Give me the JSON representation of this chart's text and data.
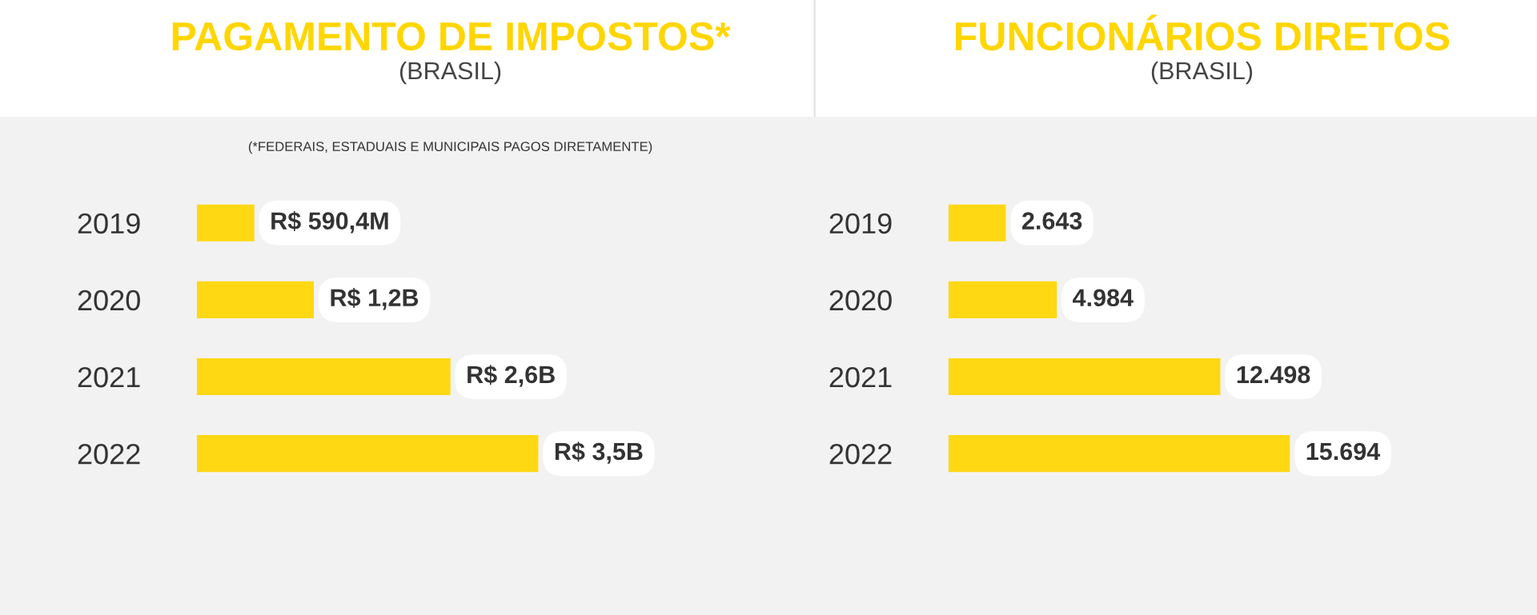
{
  "chart_data": [
    {
      "type": "bar",
      "orientation": "horizontal",
      "title": "PAGAMENTO DE IMPOSTOS*",
      "subtitle": "(BRASIL)",
      "annotations": [
        "(*FEDERAIS, ESTADUAIS E MUNICIPAIS PAGOS DIRETAMENTE)"
      ],
      "categories": [
        "2019",
        "2020",
        "2021",
        "2022"
      ],
      "values": [
        590400000,
        1200000000,
        2600000000,
        3500000000
      ],
      "value_labels": [
        "R$ 590,4M",
        "R$ 1,2B",
        "R$ 2,6B",
        "R$ 3,5B"
      ],
      "color": "#ffd814",
      "tick_labels": "y",
      "grid": false
    },
    {
      "type": "bar",
      "orientation": "horizontal",
      "title": "FUNCIONÁRIOS DIRETOS",
      "subtitle": "(BRASIL)",
      "categories": [
        "2019",
        "2020",
        "2021",
        "2022"
      ],
      "values": [
        2643,
        4984,
        12498,
        15694
      ],
      "value_labels": [
        "2.643",
        "4.984",
        "12.498",
        "15.694"
      ],
      "color": "#ffd814",
      "tick_labels": "y",
      "grid": false
    }
  ]
}
